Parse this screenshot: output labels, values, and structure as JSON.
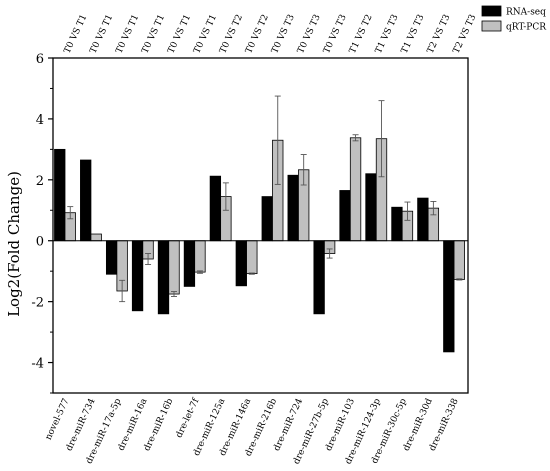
{
  "chart_data": {
    "type": "bar",
    "title": "",
    "xlabel": "",
    "ylabel": "Log2(Fold Change)",
    "ylim": [
      -5,
      6
    ],
    "yticks": [
      -4,
      -2,
      0,
      2,
      4,
      6
    ],
    "grid": false,
    "legend_position": "top-right",
    "categories": [
      "novel-577",
      "dre-miR-734",
      "dre-miR-17a-5p",
      "dre-miR-16a",
      "dre-miR-16b",
      "dre-let-7f",
      "dre-miR-125a",
      "dre-miR-146a",
      "dre-miR-216b",
      "dre-miR-724",
      "dre-miR-27b-5p",
      "dre-miR-103",
      "dre-miR-124-3p",
      "dre-miR-30c-5p",
      "dre-miR-30d",
      "dre-miR-338"
    ],
    "comparisons": [
      "T0 VS T1",
      "T0 VS T1",
      "T0 VS T1",
      "T0 VS T1",
      "T0 VS T1",
      "T0 VS T1",
      "T0 VS T2",
      "T0 VS T2",
      "T0 VS T3",
      "T0 VS T3",
      "T0 VS T3",
      "T1 VS T2",
      "T1 VS T3",
      "T1 VS T3",
      "T2 VS T3",
      "T2 VS T3"
    ],
    "series": [
      {
        "name": "RNA-seq",
        "color": "#000000",
        "values": [
          3.0,
          2.65,
          -1.1,
          -2.3,
          -2.4,
          -1.5,
          2.12,
          -1.48,
          1.45,
          2.15,
          -2.4,
          1.65,
          2.2,
          1.1,
          1.4,
          -3.65
        ],
        "errors": [
          0,
          0,
          0,
          0,
          0,
          0,
          0,
          0,
          0,
          0,
          0,
          0,
          0,
          0,
          0,
          0
        ]
      },
      {
        "name": "qRT-PCR",
        "color": "#c0c0c0",
        "values": [
          0.92,
          0.22,
          -1.65,
          -0.6,
          -1.75,
          -1.03,
          1.45,
          -1.08,
          3.3,
          2.33,
          -0.42,
          3.38,
          3.35,
          0.97,
          1.07,
          -1.27
        ],
        "errors": [
          0.2,
          0,
          0.35,
          0.18,
          0.08,
          0.04,
          0.45,
          0.02,
          1.45,
          0.5,
          0.15,
          0.1,
          1.25,
          0.3,
          0.22,
          0.02
        ]
      }
    ]
  }
}
